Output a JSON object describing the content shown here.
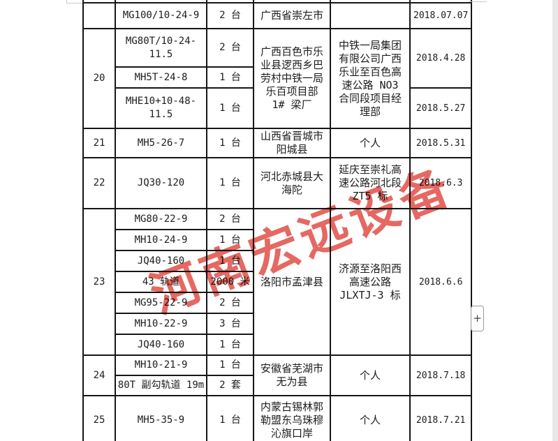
{
  "watermark": {
    "text": "河南宏远设备",
    "color": "#e0483f"
  },
  "expand_button": {
    "label": "+"
  },
  "scrollbar": {
    "side": "right"
  },
  "table": {
    "rows": [
      [
        {
          "t": "",
          "n": "row-number"
        },
        {
          "t": "",
          "n": "model-cell"
        },
        {
          "t": "",
          "n": "qty-cell"
        },
        {
          "t": "",
          "n": "location-cell"
        },
        {
          "t": "",
          "n": "buyer-cell"
        },
        {
          "t": "",
          "n": "date-cell"
        }
      ],
      [
        {
          "t": "",
          "n": "row-number"
        },
        {
          "t": "MG100/10-24-9",
          "n": "model-cell"
        },
        {
          "t": "2 台",
          "n": "qty-cell"
        },
        {
          "t": "广西省崇左市",
          "n": "location-cell"
        },
        {
          "t": "",
          "n": "buyer-cell"
        },
        {
          "t": "2018.07.07",
          "n": "date-cell"
        }
      ],
      [
        {
          "t": "20",
          "rs": 3,
          "n": "row-number"
        },
        {
          "t": "MG80T/10-24-11.5",
          "n": "model-cell"
        },
        {
          "t": "2 台",
          "n": "qty-cell"
        },
        {
          "t": "广西百色市乐业县逻西乡巴劳村中铁一局乐百项目部 1# 梁厂",
          "rs": 3,
          "n": "location-cell"
        },
        {
          "t": "中铁一局集团有限公司广西乐业至百色高速公路 NO3 合同段项目经理部",
          "rs": 3,
          "n": "buyer-cell"
        },
        {
          "t": "2018.4.28",
          "rs": 2,
          "n": "date-cell"
        }
      ],
      [
        {
          "t": "MH5T-24-8",
          "n": "model-cell"
        },
        {
          "t": "1 台",
          "n": "qty-cell"
        }
      ],
      [
        {
          "t": "MHE10+10-48-11.5",
          "n": "model-cell"
        },
        {
          "t": "1 台",
          "n": "qty-cell"
        },
        {
          "t": "2018.5.27",
          "n": "date-cell"
        }
      ],
      [
        {
          "t": "21",
          "n": "row-number"
        },
        {
          "t": "MH5-26-7",
          "n": "model-cell"
        },
        {
          "t": "1 台",
          "n": "qty-cell"
        },
        {
          "t": "山西省晋城市阳城县",
          "n": "location-cell"
        },
        {
          "t": "个人",
          "n": "buyer-cell"
        },
        {
          "t": "2018.5.31",
          "n": "date-cell"
        }
      ],
      [
        {
          "t": "22",
          "n": "row-number"
        },
        {
          "t": "JQ30-120",
          "n": "model-cell"
        },
        {
          "t": "1 台",
          "n": "qty-cell"
        },
        {
          "t": "河北赤城县大海陀",
          "n": "location-cell"
        },
        {
          "t": "延庆至崇礼高速公路河北段 ZT5 标",
          "n": "buyer-cell"
        },
        {
          "t": "2018.6.3",
          "n": "date-cell"
        }
      ],
      [
        {
          "t": "23",
          "rs": 7,
          "n": "row-number"
        },
        {
          "t": "MG80-22-9",
          "n": "model-cell"
        },
        {
          "t": "2 台",
          "n": "qty-cell"
        },
        {
          "t": "洛阳市孟津县",
          "rs": 7,
          "n": "location-cell"
        },
        {
          "t": "济源至洛阳西高速公路 JLXTJ-3 标",
          "rs": 7,
          "n": "buyer-cell"
        },
        {
          "t": "2018.6.6",
          "rs": 7,
          "n": "date-cell"
        }
      ],
      [
        {
          "t": "MH10-24-9",
          "n": "model-cell"
        },
        {
          "t": "1 台",
          "n": "qty-cell"
        }
      ],
      [
        {
          "t": "JQ40-160",
          "n": "model-cell"
        },
        {
          "t": "1 台",
          "n": "qty-cell"
        }
      ],
      [
        {
          "t": "43 轨道",
          "n": "model-cell"
        },
        {
          "t": "2000 米",
          "n": "qty-cell"
        }
      ],
      [
        {
          "t": "MG95-22-9",
          "n": "model-cell"
        },
        {
          "t": "2 台",
          "n": "qty-cell"
        }
      ],
      [
        {
          "t": "MH10-22-9",
          "n": "model-cell"
        },
        {
          "t": "3 台",
          "n": "qty-cell"
        }
      ],
      [
        {
          "t": "JQ40-160",
          "n": "model-cell"
        },
        {
          "t": "1 台",
          "n": "qty-cell"
        }
      ],
      [
        {
          "t": "24",
          "rs": 2,
          "n": "row-number"
        },
        {
          "t": "MH10-21-9",
          "n": "model-cell"
        },
        {
          "t": "1 台",
          "n": "qty-cell"
        },
        {
          "t": "安徽省芜湖市无为县",
          "rs": 2,
          "n": "location-cell"
        },
        {
          "t": "个人",
          "rs": 2,
          "n": "buyer-cell"
        },
        {
          "t": "2018.7.18",
          "rs": 2,
          "n": "date-cell"
        }
      ],
      [
        {
          "t": "80T 副勾轨道 19m",
          "n": "model-cell"
        },
        {
          "t": "2 套",
          "n": "qty-cell"
        }
      ],
      [
        {
          "t": "25",
          "n": "row-number"
        },
        {
          "t": "MH5-35-9",
          "n": "model-cell"
        },
        {
          "t": "1 台",
          "n": "qty-cell"
        },
        {
          "t": "内蒙古锡林郭勒盟东乌珠穆沁旗口岸",
          "n": "location-cell"
        },
        {
          "t": "个人",
          "n": "buyer-cell"
        },
        {
          "t": "2018.7.21",
          "n": "date-cell"
        }
      ]
    ]
  }
}
